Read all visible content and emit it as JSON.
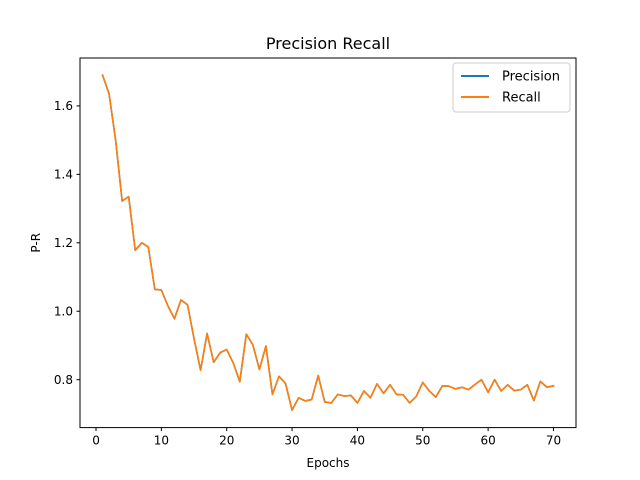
{
  "chart_data": {
    "type": "line",
    "title": "Precision Recall",
    "xlabel": "Epochs",
    "ylabel": "P-R",
    "xlim": [
      -2.45,
      73.45
    ],
    "ylim": [
      0.66,
      1.74
    ],
    "xticks": [
      0,
      10,
      20,
      30,
      40,
      50,
      60,
      70
    ],
    "yticks": [
      0.8,
      1.0,
      1.2,
      1.4,
      1.6
    ],
    "ytick_labels": [
      "0.8",
      "1.0",
      "1.2",
      "1.4",
      "1.6"
    ],
    "legend_position": "top-right",
    "grid": false,
    "x": [
      1,
      2,
      3,
      4,
      5,
      6,
      7,
      8,
      9,
      10,
      11,
      12,
      13,
      14,
      15,
      16,
      17,
      18,
      19,
      20,
      21,
      22,
      23,
      24,
      25,
      26,
      27,
      28,
      29,
      30,
      31,
      32,
      33,
      34,
      35,
      36,
      37,
      38,
      39,
      40,
      41,
      42,
      43,
      44,
      45,
      46,
      47,
      48,
      49,
      50,
      51,
      52,
      53,
      54,
      55,
      56,
      57,
      58,
      59,
      60,
      61,
      62,
      63,
      64,
      65,
      66,
      67,
      68,
      69,
      70
    ],
    "series": [
      {
        "name": "Precision",
        "color": "#1f77b4",
        "values": [
          1.69,
          1.635,
          1.5,
          1.322,
          1.335,
          1.178,
          1.2,
          1.188,
          1.064,
          1.062,
          1.016,
          0.978,
          1.033,
          1.019,
          0.92,
          0.828,
          0.935,
          0.851,
          0.879,
          0.888,
          0.849,
          0.794,
          0.933,
          0.902,
          0.83,
          0.898,
          0.757,
          0.81,
          0.789,
          0.711,
          0.747,
          0.738,
          0.742,
          0.812,
          0.735,
          0.732,
          0.757,
          0.752,
          0.754,
          0.732,
          0.767,
          0.747,
          0.788,
          0.76,
          0.785,
          0.757,
          0.756,
          0.732,
          0.751,
          0.792,
          0.767,
          0.749,
          0.782,
          0.781,
          0.773,
          0.778,
          0.771,
          0.786,
          0.8,
          0.763,
          0.8,
          0.767,
          0.785,
          0.768,
          0.771,
          0.785,
          0.739,
          0.795,
          0.778,
          0.782
        ]
      },
      {
        "name": "Recall",
        "color": "#ff7f0e",
        "values": [
          1.69,
          1.635,
          1.5,
          1.322,
          1.335,
          1.178,
          1.2,
          1.188,
          1.064,
          1.062,
          1.016,
          0.978,
          1.033,
          1.019,
          0.92,
          0.828,
          0.935,
          0.851,
          0.879,
          0.888,
          0.849,
          0.794,
          0.933,
          0.902,
          0.83,
          0.898,
          0.757,
          0.81,
          0.789,
          0.711,
          0.747,
          0.738,
          0.742,
          0.812,
          0.735,
          0.732,
          0.757,
          0.752,
          0.754,
          0.732,
          0.767,
          0.747,
          0.788,
          0.76,
          0.785,
          0.757,
          0.756,
          0.732,
          0.751,
          0.792,
          0.767,
          0.749,
          0.782,
          0.781,
          0.773,
          0.778,
          0.771,
          0.786,
          0.8,
          0.763,
          0.8,
          0.767,
          0.785,
          0.768,
          0.771,
          0.785,
          0.739,
          0.795,
          0.778,
          0.782
        ]
      }
    ]
  }
}
